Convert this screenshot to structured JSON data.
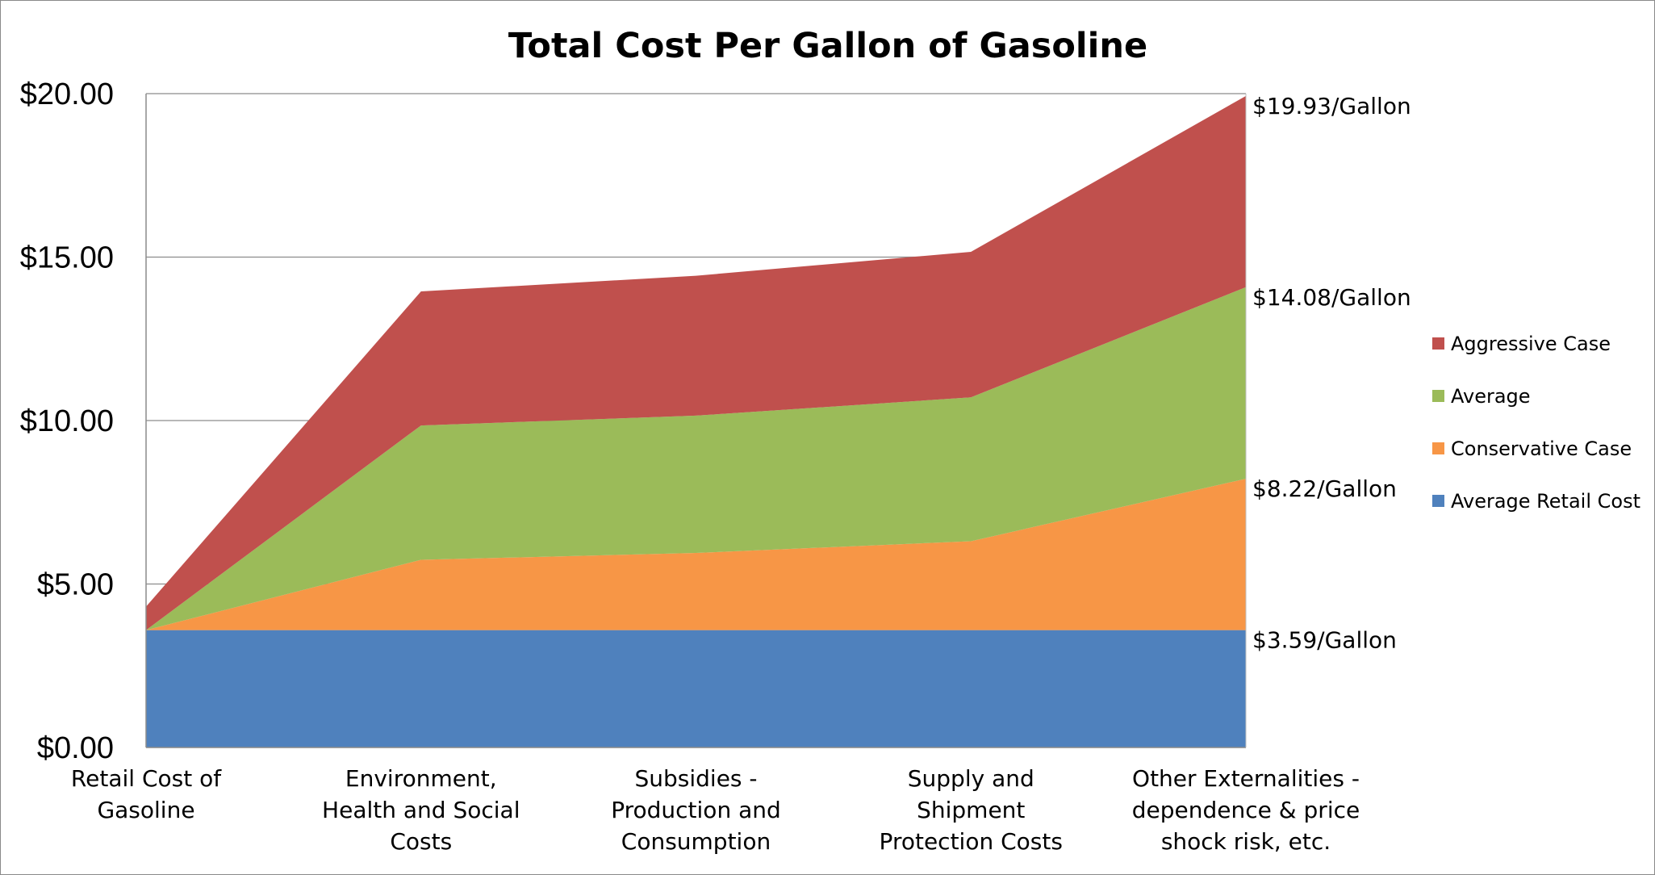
{
  "chart_data": {
    "type": "area",
    "stacked": true,
    "title": "Total Cost Per Gallon of Gasoline",
    "xlabel": "",
    "ylabel": "",
    "ylim": [
      0,
      20
    ],
    "yticks": [
      "$0.00",
      "$5.00",
      "$10.00",
      "$15.00",
      "$20.00"
    ],
    "ytick_values": [
      0,
      5,
      10,
      15,
      20
    ],
    "grid": true,
    "categories": [
      [
        "Retail Cost of",
        "Gasoline"
      ],
      [
        "Environment,",
        "Health and Social",
        "Costs"
      ],
      [
        "Subsidies -",
        "Production and",
        "Consumption"
      ],
      [
        "Supply and",
        "Shipment",
        "Protection Costs"
      ],
      [
        "Other Externalities -",
        "dependence & price",
        "shock risk, etc."
      ]
    ],
    "series": [
      {
        "name": "Average Retail Cost",
        "color": "#4f81bd",
        "values": [
          3.59,
          3.59,
          3.59,
          3.59,
          3.59
        ]
      },
      {
        "name": "Conservative Case",
        "color": "#f79646",
        "values": [
          0,
          2.15,
          2.36,
          2.72,
          4.63
        ]
      },
      {
        "name": "Average",
        "color": "#9bbb59",
        "values": [
          0,
          4.11,
          4.2,
          4.4,
          5.86
        ]
      },
      {
        "name": "Aggressive Case",
        "color": "#c0504d",
        "values": [
          0.72,
          4.1,
          4.28,
          4.45,
          5.85
        ]
      }
    ],
    "annotations": [
      "$19.93/Gallon",
      "$14.08/Gallon",
      "$8.22/Gallon",
      "$3.59/Gallon"
    ],
    "annotation_values": [
      19.93,
      14.08,
      8.22,
      3.59
    ],
    "legend_position": "right",
    "legend_order": [
      "Aggressive Case",
      "Average",
      "Conservative Case",
      "Average Retail Cost"
    ]
  }
}
